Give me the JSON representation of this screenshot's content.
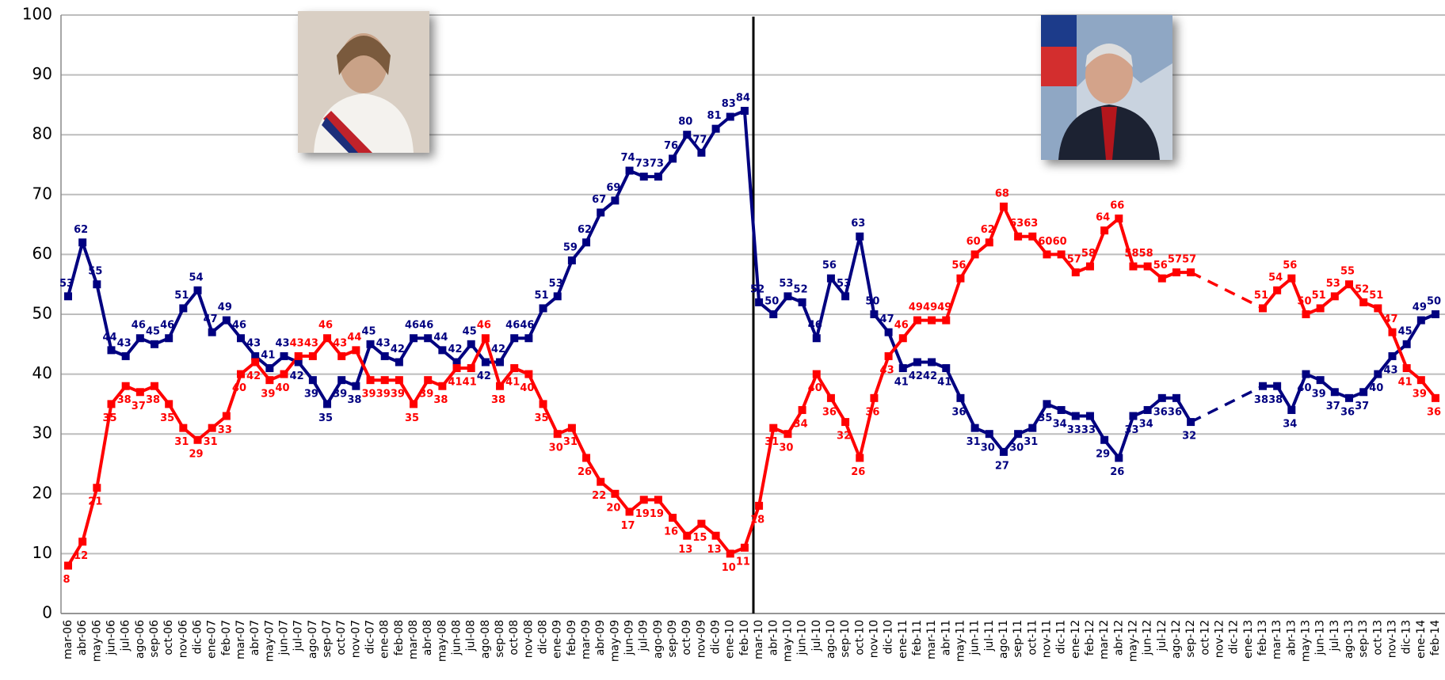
{
  "chart_data": {
    "type": "line",
    "categories": [
      "mar-06",
      "abr-06",
      "may-06",
      "jun-06",
      "jul-06",
      "ago-06",
      "sep-06",
      "oct-06",
      "nov-06",
      "dic-06",
      "ene-07",
      "feb-07",
      "mar-07",
      "abr-07",
      "may-07",
      "jun-07",
      "jul-07",
      "ago-07",
      "sep-07",
      "oct-07",
      "nov-07",
      "dic-07",
      "ene-08",
      "feb-08",
      "mar-08",
      "abr-08",
      "may-08",
      "jun-08",
      "jul-08",
      "ago-08",
      "sep-08",
      "oct-08",
      "nov-08",
      "dic-08",
      "ene-09",
      "feb-09",
      "mar-09",
      "abr-09",
      "may-09",
      "jun-09",
      "jul-09",
      "ago-09",
      "sep-09",
      "oct-09",
      "nov-09",
      "dic-09",
      "ene-10",
      "feb-10",
      "mar-10",
      "abr-10",
      "may-10",
      "jun-10",
      "jul-10",
      "ago-10",
      "sep-10",
      "oct-10",
      "nov-10",
      "dic-10",
      "ene-11",
      "feb-11",
      "mar-11",
      "abr-11",
      "may-11",
      "jun-11",
      "jul-11",
      "ago-11",
      "sep-11",
      "oct-11",
      "nov-11",
      "dic-11",
      "ene-12",
      "feb-12",
      "mar-12",
      "abr-12",
      "may-12",
      "jun-12",
      "jul-12",
      "ago-12",
      "sep-12",
      "oct-12",
      "nov-12",
      "dic-12",
      "ene-13",
      "feb-13",
      "mar-13",
      "abr-13",
      "may-13",
      "jun-13",
      "jul-13",
      "ago-13",
      "sep-13",
      "oct-13",
      "nov-13",
      "dic-13",
      "ene-14",
      "feb-14"
    ],
    "series": [
      {
        "color": "#000080",
        "values": [
          53,
          62,
          55,
          44,
          43,
          46,
          45,
          46,
          51,
          54,
          47,
          49,
          46,
          43,
          41,
          43,
          42,
          39,
          35,
          39,
          38,
          45,
          43,
          42,
          46,
          46,
          44,
          42,
          45,
          42,
          42,
          46,
          46,
          51,
          53,
          59,
          62,
          67,
          69,
          74,
          73,
          73,
          76,
          80,
          77,
          81,
          83,
          84,
          52,
          50,
          53,
          52,
          46,
          56,
          53,
          63,
          50,
          47,
          41,
          42,
          42,
          41,
          36,
          31,
          30,
          27,
          30,
          31,
          35,
          34,
          33,
          33,
          29,
          26,
          33,
          34,
          36,
          36,
          32,
          null,
          null,
          null,
          null,
          38,
          38,
          34,
          40,
          39,
          37,
          36,
          37,
          40,
          43,
          45,
          49,
          50
        ]
      },
      {
        "color": "#ff0000",
        "values": [
          8,
          12,
          21,
          35,
          38,
          37,
          38,
          35,
          31,
          29,
          31,
          33,
          40,
          42,
          39,
          40,
          43,
          43,
          46,
          43,
          44,
          39,
          39,
          39,
          35,
          39,
          38,
          41,
          41,
          46,
          38,
          41,
          40,
          35,
          30,
          31,
          26,
          22,
          20,
          17,
          19,
          19,
          16,
          13,
          15,
          13,
          10,
          11,
          18,
          31,
          30,
          34,
          40,
          36,
          32,
          26,
          36,
          43,
          46,
          49,
          49,
          49,
          56,
          60,
          62,
          68,
          63,
          63,
          60,
          60,
          57,
          58,
          64,
          66,
          58,
          58,
          56,
          57,
          57,
          null,
          null,
          null,
          null,
          51,
          54,
          56,
          50,
          51,
          53,
          55,
          52,
          51,
          47,
          41,
          39,
          36
        ]
      }
    ],
    "ylim": [
      0,
      100
    ],
    "yticks": [
      0,
      10,
      20,
      30,
      40,
      50,
      60,
      70,
      80,
      90,
      100
    ],
    "grid": true
  }
}
